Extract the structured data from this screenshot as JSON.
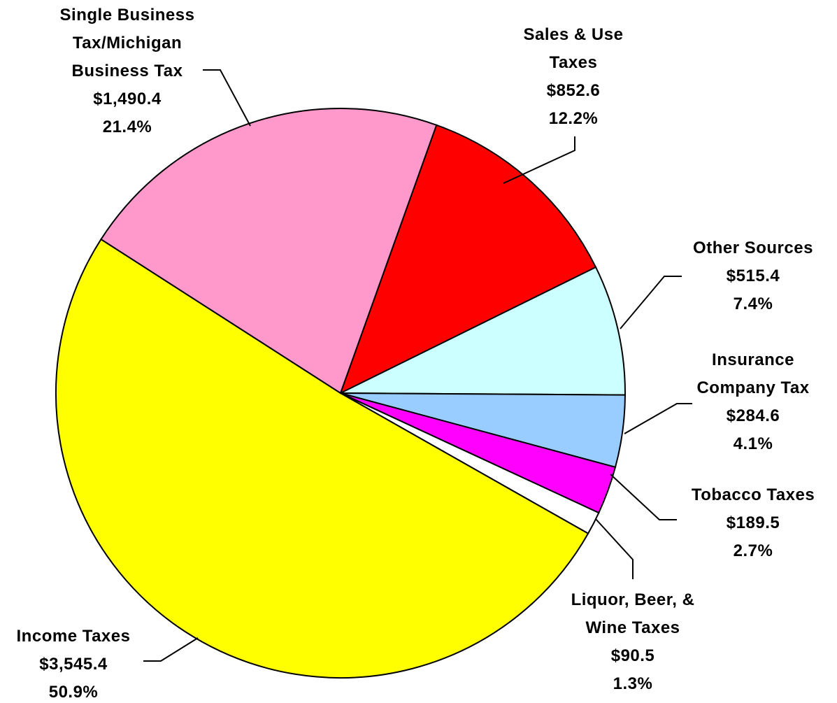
{
  "chart_data": {
    "type": "pie",
    "categories": [
      "Sales & Use Taxes",
      "Other Sources",
      "Insurance Company Tax",
      "Tobacco Taxes",
      "Liquor, Beer, & Wine Taxes",
      "Income Taxes",
      "Single Business Tax/Michigan Business Tax"
    ],
    "values": [
      852.6,
      515.4,
      284.6,
      189.5,
      90.5,
      3545.4,
      1490.4
    ],
    "value_labels": [
      "$852.6",
      "$515.4",
      "$284.6",
      "$189.5",
      "$90.5",
      "$3,545.4",
      "$1,490.4"
    ],
    "percent_labels": [
      "12.2%",
      "7.4%",
      "4.1%",
      "2.7%",
      "1.3%",
      "50.9%",
      "21.4%"
    ],
    "colors": [
      "#ff0000",
      "#ccffff",
      "#99ccff",
      "#ff00ff",
      "#ffffff",
      "#ffff00",
      "#ff99cc"
    ]
  }
}
